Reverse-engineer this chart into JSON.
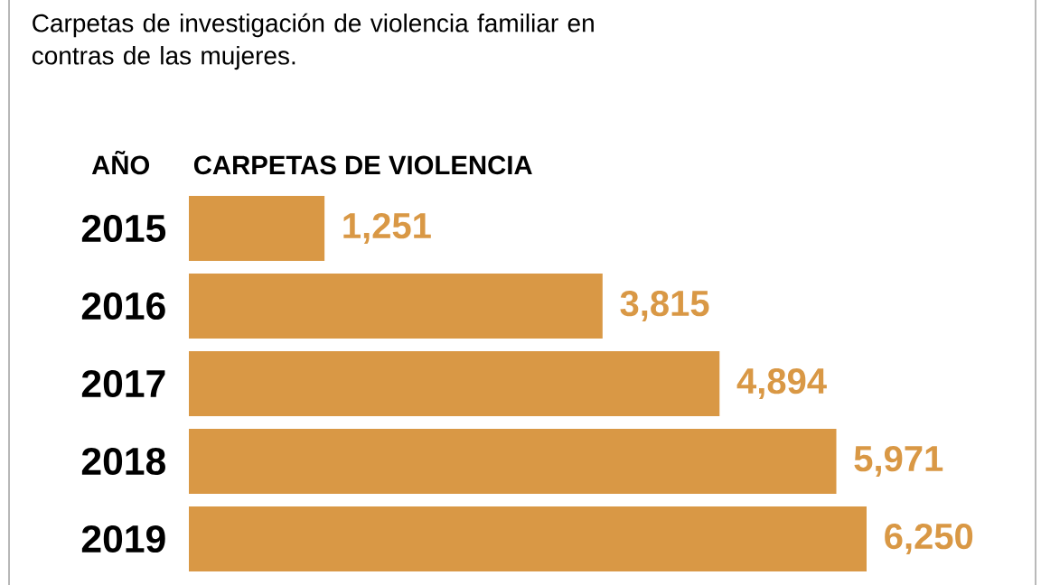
{
  "chart_data": {
    "type": "bar",
    "orientation": "horizontal",
    "title": "Carpetas de investigación de violencia familiar en contras de las mujeres.",
    "ylabel": "AÑO",
    "xlabel": "CARPETAS DE VIOLENCIA",
    "categories": [
      "2015",
      "2016",
      "2017",
      "2018",
      "2019"
    ],
    "values": [
      1251,
      3815,
      4894,
      5971,
      6250
    ],
    "value_labels": [
      "1,251",
      "3,815",
      "4,894",
      "5,971",
      "6,250"
    ],
    "color": "#d99845",
    "relative": false
  }
}
